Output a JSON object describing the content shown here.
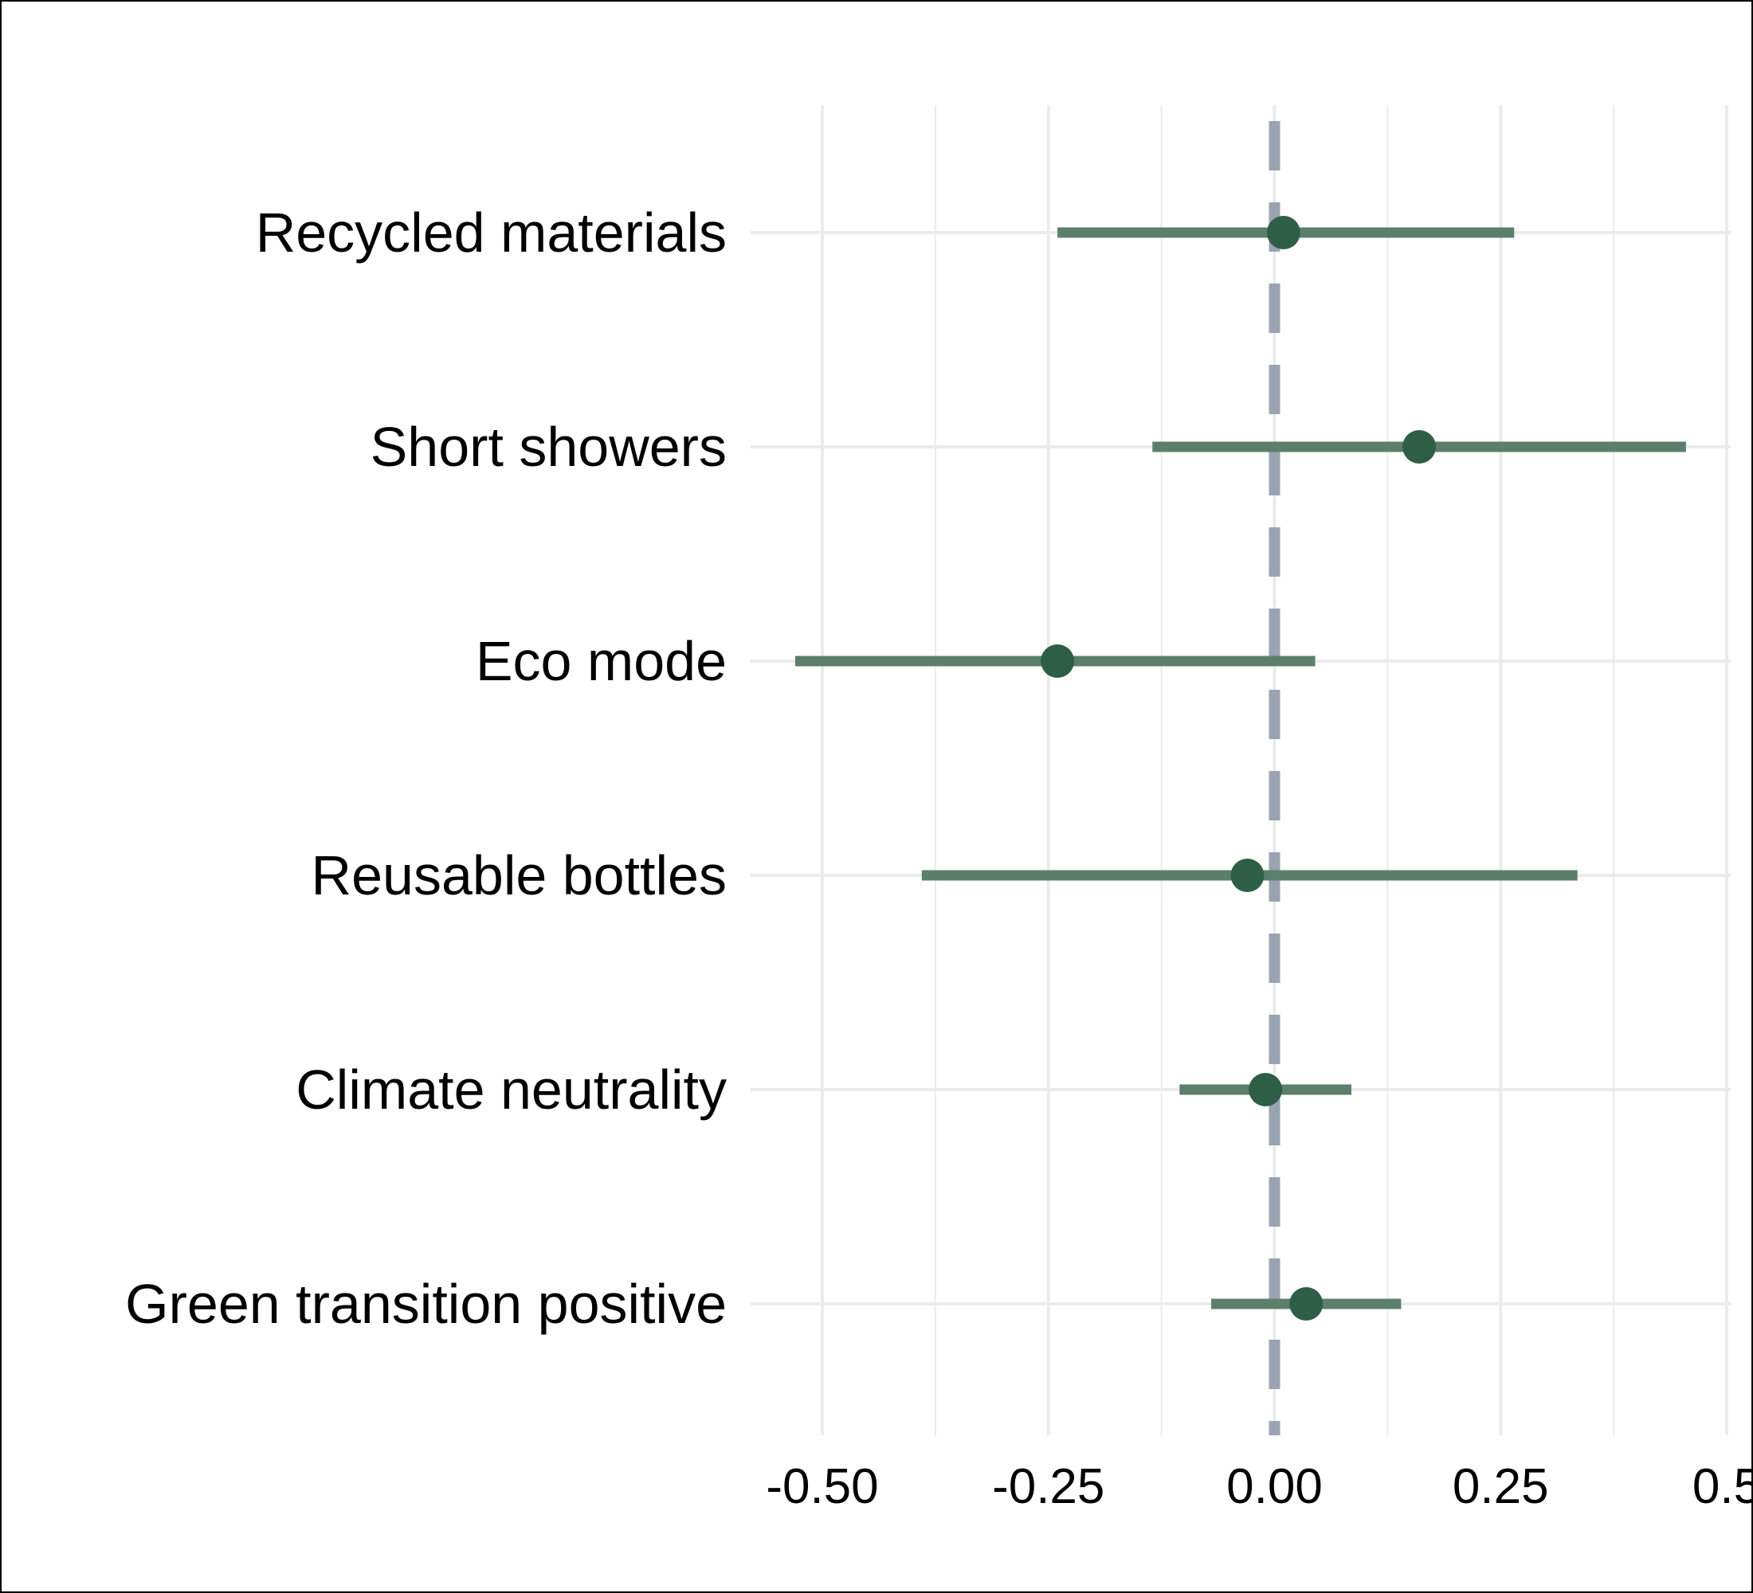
{
  "chart_data": {
    "type": "forest",
    "categories": [
      "Recycled materials",
      "Short showers",
      "Eco mode",
      "Reusable bottles",
      "Climate neutrality",
      "Green transition positive"
    ],
    "series": [
      {
        "estimate": [
          0.01,
          0.16,
          -0.24,
          -0.03,
          -0.01,
          0.035
        ],
        "ci_low": [
          -0.24,
          -0.135,
          -0.53,
          -0.39,
          -0.105,
          -0.07
        ],
        "ci_high": [
          0.265,
          0.455,
          0.045,
          0.335,
          0.085,
          0.14
        ]
      }
    ],
    "x_ticks": [
      -0.5,
      -0.25,
      0,
      0.25,
      0.5
    ],
    "x_tick_labels": [
      "-0.50",
      "-0.25",
      "0.00",
      "0.25",
      "0.5"
    ],
    "xlim": [
      -0.58,
      0.5
    ],
    "reference_line": 0,
    "grid": true,
    "title": "",
    "xlabel": "",
    "ylabel": "",
    "colors": {
      "point": "#2e5e46",
      "interval": "#5b7f6a",
      "reference": "#9aa3b0",
      "grid": "#ebebeb"
    }
  }
}
